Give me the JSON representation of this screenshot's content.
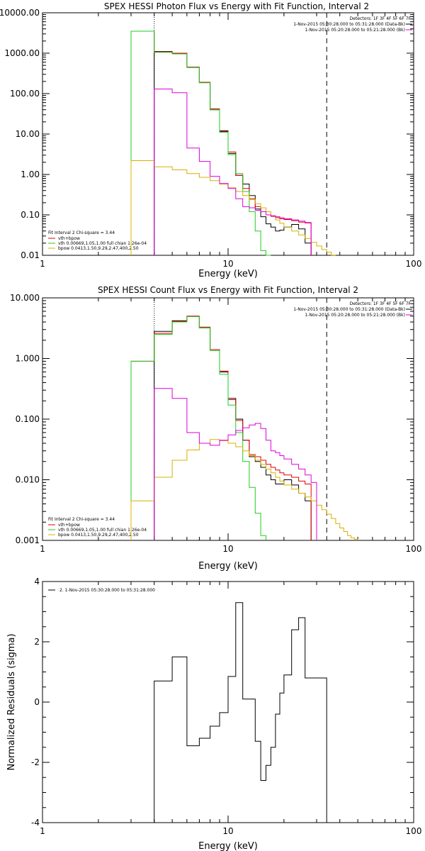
{
  "chart_data": [
    {
      "type": "line",
      "title": "SPEX HESSI Photon Flux vs Energy with Fit Function, Interval 2",
      "xlabel": "Energy (keV)",
      "ylabel": "",
      "xscale": "log",
      "yscale": "log",
      "xlim": [
        1,
        100
      ],
      "ylim": [
        0.01,
        10000
      ],
      "xtick_labels": [
        "1",
        "10",
        "100"
      ],
      "ytick_values": [
        0.01,
        0.1,
        1,
        10,
        100,
        1000,
        10000
      ],
      "ytick_labels": [
        "0.01",
        "0.10",
        "1.00",
        "10.00",
        "100.00",
        "1000.00",
        "10000.00"
      ],
      "header": [
        "Detectors: 1F 3F 4F 5F 6F 7F",
        "1-Nov-2015 05:30:28.000 to 05:31:28.000 (Data-Bk)",
        "1-Nov-2015 05:20:28.000 to 05:21:28.000 (Bk)"
      ],
      "legend_title": "Fit Interval 2   Chi-square = 3.44",
      "legend_position": "bottom-left",
      "vlines": [
        {
          "x": 4,
          "style": "dotted"
        },
        {
          "x": 34,
          "style": "dashed"
        }
      ],
      "edges": [
        3,
        4,
        5,
        6,
        7,
        8,
        9,
        10,
        11,
        12,
        13,
        14,
        15,
        16,
        17,
        18,
        19,
        20,
        22,
        24,
        26,
        28,
        30,
        32,
        34,
        36,
        38,
        40,
        42,
        44,
        46
      ],
      "series": [
        {
          "name": "",
          "role": "data-bk",
          "color": "#000000",
          "values": [
            null,
            1100,
            1000,
            450,
            190,
            40,
            12,
            3.3,
            0.95,
            0.58,
            0.3,
            0.14,
            0.09,
            0.06,
            0.05,
            0.04,
            0.042,
            0.05,
            0.058,
            0.045,
            0.02,
            null,
            null,
            null,
            null,
            null,
            null,
            null,
            null,
            null
          ]
        },
        {
          "name": "vth+bpow",
          "role": "total",
          "color": "#e00000",
          "values": [
            3500,
            1070,
            1000,
            450,
            190,
            42,
            11.5,
            3.6,
            0.95,
            0.45,
            0.25,
            0.16,
            0.12,
            0.1,
            0.092,
            0.085,
            0.08,
            0.077,
            0.072,
            0.066,
            0.063,
            null,
            null,
            null,
            null,
            null,
            null,
            null,
            null,
            null
          ]
        },
        {
          "name": "vth 0.00669,1.05,1.00  full chian 1.26e-04",
          "role": "thermal",
          "color": "#22cc22",
          "values": [
            3500,
            1050,
            960,
            440,
            185,
            40,
            11,
            3.1,
            1.05,
            0.38,
            0.12,
            0.04,
            0.013,
            0.006,
            null,
            null,
            null,
            null,
            null,
            null,
            null,
            null,
            null,
            null,
            null,
            null,
            null,
            null,
            null,
            null
          ]
        },
        {
          "name": "bpow 0.0413,1.50,9.29,2.47,400,2.50",
          "role": "power-law",
          "color": "#d8b000",
          "values": [
            2.2,
            1.55,
            1.3,
            1.05,
            0.85,
            0.7,
            0.57,
            0.47,
            0.38,
            0.3,
            0.24,
            0.19,
            0.15,
            0.12,
            0.095,
            0.075,
            0.062,
            0.05,
            0.04,
            0.032,
            0.026,
            0.021,
            0.017,
            0.014,
            0.012,
            0.0101,
            null,
            null,
            null,
            null
          ]
        },
        {
          "name": "",
          "role": "background",
          "color": "#dd00dd",
          "values": [
            null,
            130,
            105,
            4.5,
            2.1,
            0.9,
            0.6,
            0.45,
            0.25,
            0.16,
            0.15,
            0.13,
            0.12,
            0.1,
            0.095,
            0.09,
            0.085,
            0.08,
            0.075,
            0.07,
            0.065,
            null,
            null,
            null,
            null,
            null,
            null,
            null,
            null,
            null
          ]
        }
      ]
    },
    {
      "type": "line",
      "title": "SPEX HESSI Count Flux vs Energy with Fit Function, Interval 2",
      "xlabel": "Energy (keV)",
      "ylabel": "",
      "xscale": "log",
      "yscale": "log",
      "xlim": [
        1,
        100
      ],
      "ylim": [
        0.001,
        10
      ],
      "xtick_labels": [
        "1",
        "10",
        "100"
      ],
      "ytick_values": [
        0.001,
        0.01,
        0.1,
        1,
        10
      ],
      "ytick_labels": [
        "0.001",
        "0.010",
        "0.100",
        "1.000",
        "10.000"
      ],
      "header": [
        "Detectors: 1F 3F 4F 5F 6F 7F",
        "1-Nov-2015 05:30:28.000 to 05:31:28.000 (Data-Bk)",
        "1-Nov-2015 05:20:28.000 to 05:21:28.000 (Bk)"
      ],
      "legend_title": "Fit Interval 2   Chi-square = 3.44",
      "legend_position": "bottom-left",
      "vlines": [
        {
          "x": 4,
          "style": "dotted"
        },
        {
          "x": 34,
          "style": "dashed"
        }
      ],
      "edges": [
        3,
        4,
        5,
        6,
        7,
        8,
        9,
        10,
        11,
        12,
        13,
        14,
        15,
        16,
        17,
        18,
        19,
        20,
        22,
        24,
        26,
        28,
        30,
        32,
        34,
        36,
        38,
        40,
        42,
        44,
        46,
        48,
        50,
        55,
        60
      ],
      "series": [
        {
          "name": "",
          "role": "data-bk",
          "color": "#000000",
          "values": [
            null,
            2.8,
            4.2,
            4.9,
            3.2,
            1.4,
            0.6,
            0.22,
            0.1,
            0.045,
            0.024,
            0.02,
            0.016,
            0.012,
            0.01,
            0.0085,
            0.0085,
            0.01,
            0.0082,
            0.006,
            0.0045,
            null,
            null,
            null,
            null,
            null,
            null,
            null,
            null,
            null,
            null,
            null,
            null,
            null
          ]
        },
        {
          "name": "vth+bpow",
          "role": "total",
          "color": "#e00000",
          "values": [
            0.9,
            2.6,
            4.1,
            5.0,
            3.3,
            1.4,
            0.62,
            0.21,
            0.095,
            0.045,
            0.026,
            0.024,
            0.021,
            0.018,
            0.016,
            0.0145,
            0.013,
            0.012,
            0.011,
            0.0095,
            0.0085,
            null,
            null,
            null,
            null,
            null,
            null,
            null,
            null,
            null,
            null,
            null,
            null,
            null
          ]
        },
        {
          "name": "vth 0.00669,1.05,1.00  full chian 1.26e-04",
          "role": "thermal",
          "color": "#22cc22",
          "values": [
            0.9,
            2.5,
            4.0,
            4.9,
            3.2,
            1.35,
            0.55,
            0.17,
            0.06,
            0.02,
            0.0075,
            0.0028,
            0.0012,
            null,
            null,
            null,
            null,
            null,
            null,
            null,
            null,
            null,
            null,
            null,
            null,
            null,
            null,
            null,
            null,
            null,
            null,
            null,
            null,
            null
          ]
        },
        {
          "name": "bpow 0.0413,1.50,9.29,2.47,400,2.50",
          "role": "power-law",
          "color": "#d8b000",
          "values": [
            0.0045,
            0.011,
            0.021,
            0.031,
            0.04,
            0.046,
            0.044,
            0.04,
            0.035,
            0.03,
            0.025,
            0.021,
            0.018,
            0.015,
            0.013,
            0.011,
            0.0095,
            0.0082,
            0.007,
            0.006,
            0.0052,
            0.0045,
            0.0038,
            0.0032,
            0.0027,
            0.0023,
            0.0019,
            0.0016,
            0.0014,
            0.0012,
            0.0011,
            0.00105,
            null,
            null
          ]
        },
        {
          "name": "",
          "role": "background",
          "color": "#dd00dd",
          "values": [
            null,
            0.32,
            0.22,
            0.06,
            0.04,
            0.037,
            0.045,
            0.055,
            0.065,
            0.072,
            0.08,
            0.085,
            0.07,
            0.045,
            0.03,
            0.028,
            0.025,
            0.022,
            0.018,
            0.015,
            0.012,
            0.009,
            null,
            null,
            null,
            null,
            null,
            null,
            null,
            null,
            null,
            null,
            null,
            null
          ]
        }
      ]
    },
    {
      "type": "line",
      "title": "",
      "xlabel": "Energy (keV)",
      "ylabel": "Normalized Residuals (sigma)",
      "xscale": "log",
      "yscale": "linear",
      "xlim": [
        1,
        100
      ],
      "ylim": [
        -4,
        4
      ],
      "xtick_labels": [
        "1",
        "10",
        "100"
      ],
      "ytick_values": [
        -4,
        -2,
        0,
        2,
        4
      ],
      "ytick_labels": [
        "-4",
        "-2",
        "0",
        "2",
        "4"
      ],
      "legend": "2. 1-Nov-2015 05:30:28.000 to 05:31:28.000",
      "legend_position": "top-left",
      "edges": [
        4,
        5,
        6,
        7,
        8,
        9,
        10,
        11,
        12,
        13,
        14,
        15,
        16,
        17,
        18,
        19,
        20,
        22,
        24,
        26,
        28,
        30,
        32,
        34
      ],
      "series": [
        {
          "name": "",
          "color": "#000000",
          "values": [
            0.7,
            1.5,
            -1.45,
            -1.2,
            -0.8,
            -0.35,
            0.85,
            3.3,
            0.1,
            0.1,
            -1.3,
            -2.6,
            -2.1,
            -1.5,
            -0.4,
            0.3,
            0.9,
            2.4,
            2.8,
            0.8,
            0.8,
            0.8,
            0.8
          ]
        }
      ]
    }
  ]
}
